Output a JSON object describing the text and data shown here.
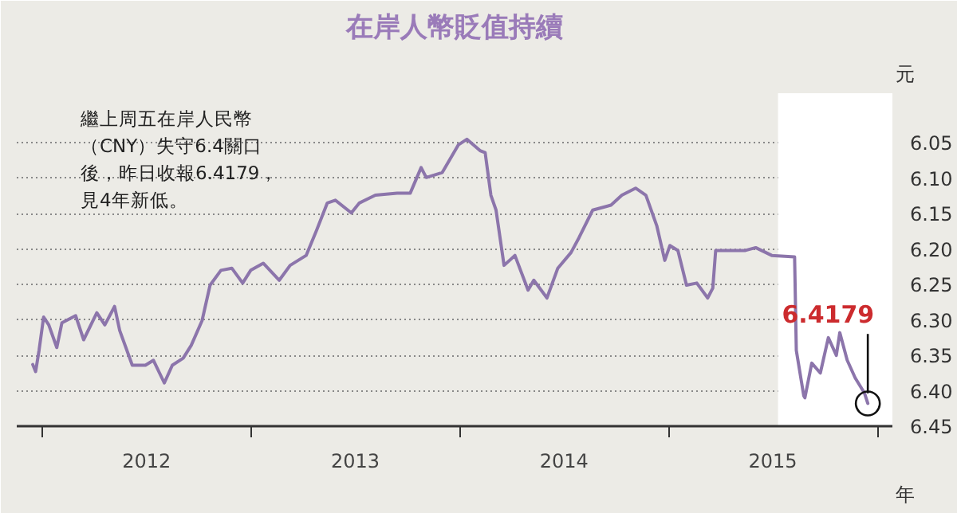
{
  "chart_data": {
    "type": "line",
    "title": "在岸人幣貶值持續",
    "ylabel": "元",
    "xlabel": "年",
    "x": [
      "2011-12-15",
      "2011-12-20",
      "2011-12-26",
      "2012-01-03",
      "2012-01-12",
      "2012-01-26",
      "2012-02-04",
      "2012-02-28",
      "2012-03-13",
      "2012-04-05",
      "2012-04-19",
      "2012-05-06",
      "2012-05-15",
      "2012-06-06",
      "2012-06-29",
      "2012-07-13",
      "2012-08-01",
      "2012-08-15",
      "2012-09-03",
      "2012-09-17",
      "2012-10-06",
      "2012-10-20",
      "2012-11-08",
      "2012-11-27",
      "2012-12-16",
      "2012-12-30",
      "2013-01-21",
      "2013-02-18",
      "2013-03-09",
      "2013-04-06",
      "2013-04-24",
      "2013-05-13",
      "2013-05-27",
      "2013-06-24",
      "2013-07-08",
      "2013-08-05",
      "2013-09-12",
      "2013-10-05",
      "2013-10-24",
      "2013-11-02",
      "2013-11-30",
      "2013-12-28",
      "2014-01-12",
      "2014-02-04",
      "2014-02-13",
      "2014-02-23",
      "2014-03-04",
      "2014-03-18",
      "2014-04-06",
      "2014-04-29",
      "2014-05-09",
      "2014-06-01",
      "2014-06-20",
      "2014-07-13",
      "2014-07-27",
      "2014-08-20",
      "2014-09-21",
      "2014-10-10",
      "2014-11-03",
      "2014-11-21",
      "2014-12-10",
      "2014-12-24",
      "2015-01-02",
      "2015-01-16",
      "2015-01-31",
      "2015-02-18",
      "2015-03-09",
      "2015-03-18",
      "2015-03-23",
      "2015-04-15",
      "2015-05-14",
      "2015-06-01",
      "2015-06-29",
      "2015-08-08",
      "2015-08-11",
      "2015-08-24",
      "2015-08-26",
      "2015-09-07",
      "2015-09-22",
      "2015-10-06",
      "2015-10-20",
      "2015-10-26",
      "2015-11-08",
      "2015-11-22",
      "2015-12-08",
      "2015-12-14"
    ],
    "series": [
      {
        "color": "#8c75ab",
        "values": [
          6.363,
          6.373,
          6.343,
          6.296,
          6.307,
          6.339,
          6.304,
          6.294,
          6.328,
          6.29,
          6.307,
          6.281,
          6.315,
          6.364,
          6.364,
          6.357,
          6.389,
          6.364,
          6.354,
          6.336,
          6.301,
          6.251,
          6.23,
          6.227,
          6.248,
          6.23,
          6.22,
          6.244,
          6.223,
          6.209,
          6.174,
          6.135,
          6.131,
          6.149,
          6.135,
          6.124,
          6.121,
          6.121,
          6.085,
          6.099,
          6.092,
          6.053,
          6.045,
          6.061,
          6.064,
          6.124,
          6.145,
          6.223,
          6.209,
          6.258,
          6.244,
          6.269,
          6.227,
          6.205,
          6.184,
          6.145,
          6.138,
          6.124,
          6.114,
          6.124,
          6.167,
          6.216,
          6.195,
          6.202,
          6.251,
          6.248,
          6.269,
          6.255,
          6.202,
          6.202,
          6.202,
          6.198,
          6.209,
          6.211,
          6.343,
          6.407,
          6.41,
          6.361,
          6.375,
          6.325,
          6.35,
          6.318,
          6.357,
          6.382,
          6.403,
          6.4179
        ]
      }
    ],
    "xlim": [
      "2011-11-17",
      "2016-01-26"
    ],
    "xticks": [
      {
        "value": "2012-01-01",
        "label": null
      },
      {
        "value": "2012-07-01",
        "label": "2012"
      },
      {
        "value": "2013-01-01",
        "label": null
      },
      {
        "value": "2013-07-01",
        "label": "2013"
      },
      {
        "value": "2014-01-01",
        "label": null
      },
      {
        "value": "2014-07-01",
        "label": "2014"
      },
      {
        "value": "2015-01-01",
        "label": null
      },
      {
        "value": "2015-07-01",
        "label": "2015"
      },
      {
        "value": "2016-01-01",
        "label": null
      }
    ],
    "ylim": [
      6.45,
      5.98
    ],
    "yticks": [
      6.05,
      {
        "value": 6.1,
        "label": "6.10"
      },
      6.15,
      {
        "value": 6.2,
        "label": "6.20"
      },
      6.25,
      {
        "value": 6.3,
        "label": "6.30"
      },
      6.35,
      {
        "value": 6.4,
        "label": "6.40"
      },
      6.45
    ],
    "grid": "y",
    "line_style": "solid",
    "bands": [
      {
        "axis": "x",
        "from": "2015-07-10",
        "to": "2016-01-26",
        "color": "#ffffff"
      }
    ],
    "annotations": [
      "繼上周五在岸人民幣（CNY）失守6.4關口後，昨日收報6.4179，見4年新低。",
      {
        "text": "6.4179",
        "x": "2015-12-14",
        "y": 6.4179
      }
    ]
  }
}
